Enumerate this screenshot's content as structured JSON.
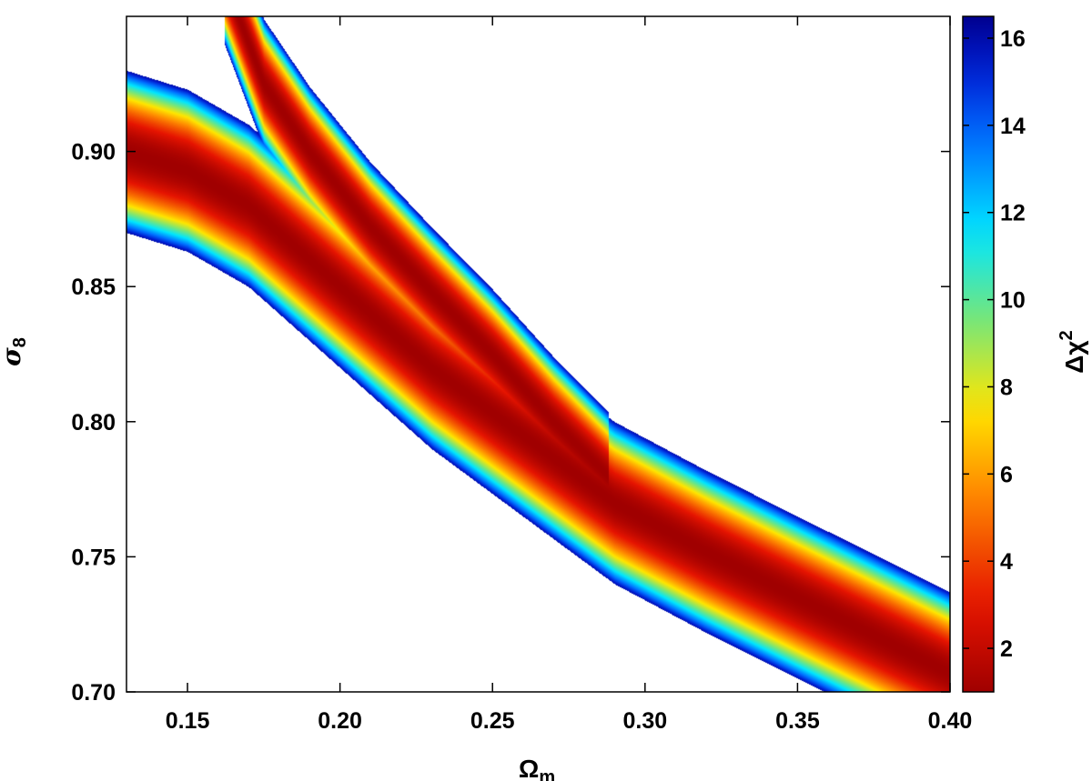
{
  "chart_data": {
    "type": "heatmap",
    "title": "",
    "xlabel": "Ω",
    "xlabel_sub": "m",
    "ylabel": "σ",
    "ylabel_sub": "8",
    "xlim": [
      0.13,
      0.4
    ],
    "ylim": [
      0.7,
      0.95
    ],
    "x_ticks": [
      0.15,
      0.2,
      0.25,
      0.3,
      0.35,
      0.4
    ],
    "x_tick_labels": [
      "0.15",
      "0.20",
      "0.25",
      "0.30",
      "0.35",
      "0.40"
    ],
    "y_ticks": [
      0.7,
      0.75,
      0.8,
      0.85,
      0.9
    ],
    "y_tick_labels": [
      "0.70",
      "0.75",
      "0.80",
      "0.85",
      "0.90"
    ],
    "grid": false,
    "colorbar": {
      "label": "Δχ",
      "label_sup": "2",
      "range": [
        1.0,
        16.5
      ],
      "ticks": [
        2,
        4,
        6,
        8,
        10,
        12,
        14,
        16
      ],
      "tick_labels": [
        "2",
        "4",
        "6",
        "8",
        "10",
        "12",
        "14",
        "16"
      ],
      "colormap": "jet_reversed",
      "low_color": "#a00000",
      "high_color": "#00008f"
    },
    "regions": [
      {
        "description_free": true,
        "centerline": [
          [
            0.13,
            0.9
          ],
          [
            0.15,
            0.893
          ],
          [
            0.17,
            0.88
          ],
          [
            0.2,
            0.85
          ],
          [
            0.23,
            0.82
          ],
          [
            0.26,
            0.795
          ],
          [
            0.29,
            0.77
          ],
          [
            0.32,
            0.752
          ],
          [
            0.35,
            0.735
          ],
          [
            0.4,
            0.707
          ]
        ],
        "min_chi2": 1.0,
        "max_chi2": 16.0
      },
      {
        "description_free": true,
        "centerline": [
          [
            0.165,
            0.955
          ],
          [
            0.175,
            0.925
          ],
          [
            0.19,
            0.9
          ],
          [
            0.21,
            0.872
          ],
          [
            0.23,
            0.848
          ],
          [
            0.25,
            0.825
          ],
          [
            0.27,
            0.8
          ],
          [
            0.285,
            0.783
          ]
        ],
        "min_chi2": 1.0,
        "max_chi2": 16.0
      },
      {
        "description_free": true,
        "centerline": [
          [
            0.205,
            0.857
          ],
          [
            0.23,
            0.83
          ],
          [
            0.26,
            0.8
          ],
          [
            0.29,
            0.775
          ],
          [
            0.32,
            0.75
          ],
          [
            0.345,
            0.731
          ],
          [
            0.36,
            0.721
          ]
        ],
        "min_chi2": 4.0,
        "max_chi2": 16.5
      }
    ]
  }
}
